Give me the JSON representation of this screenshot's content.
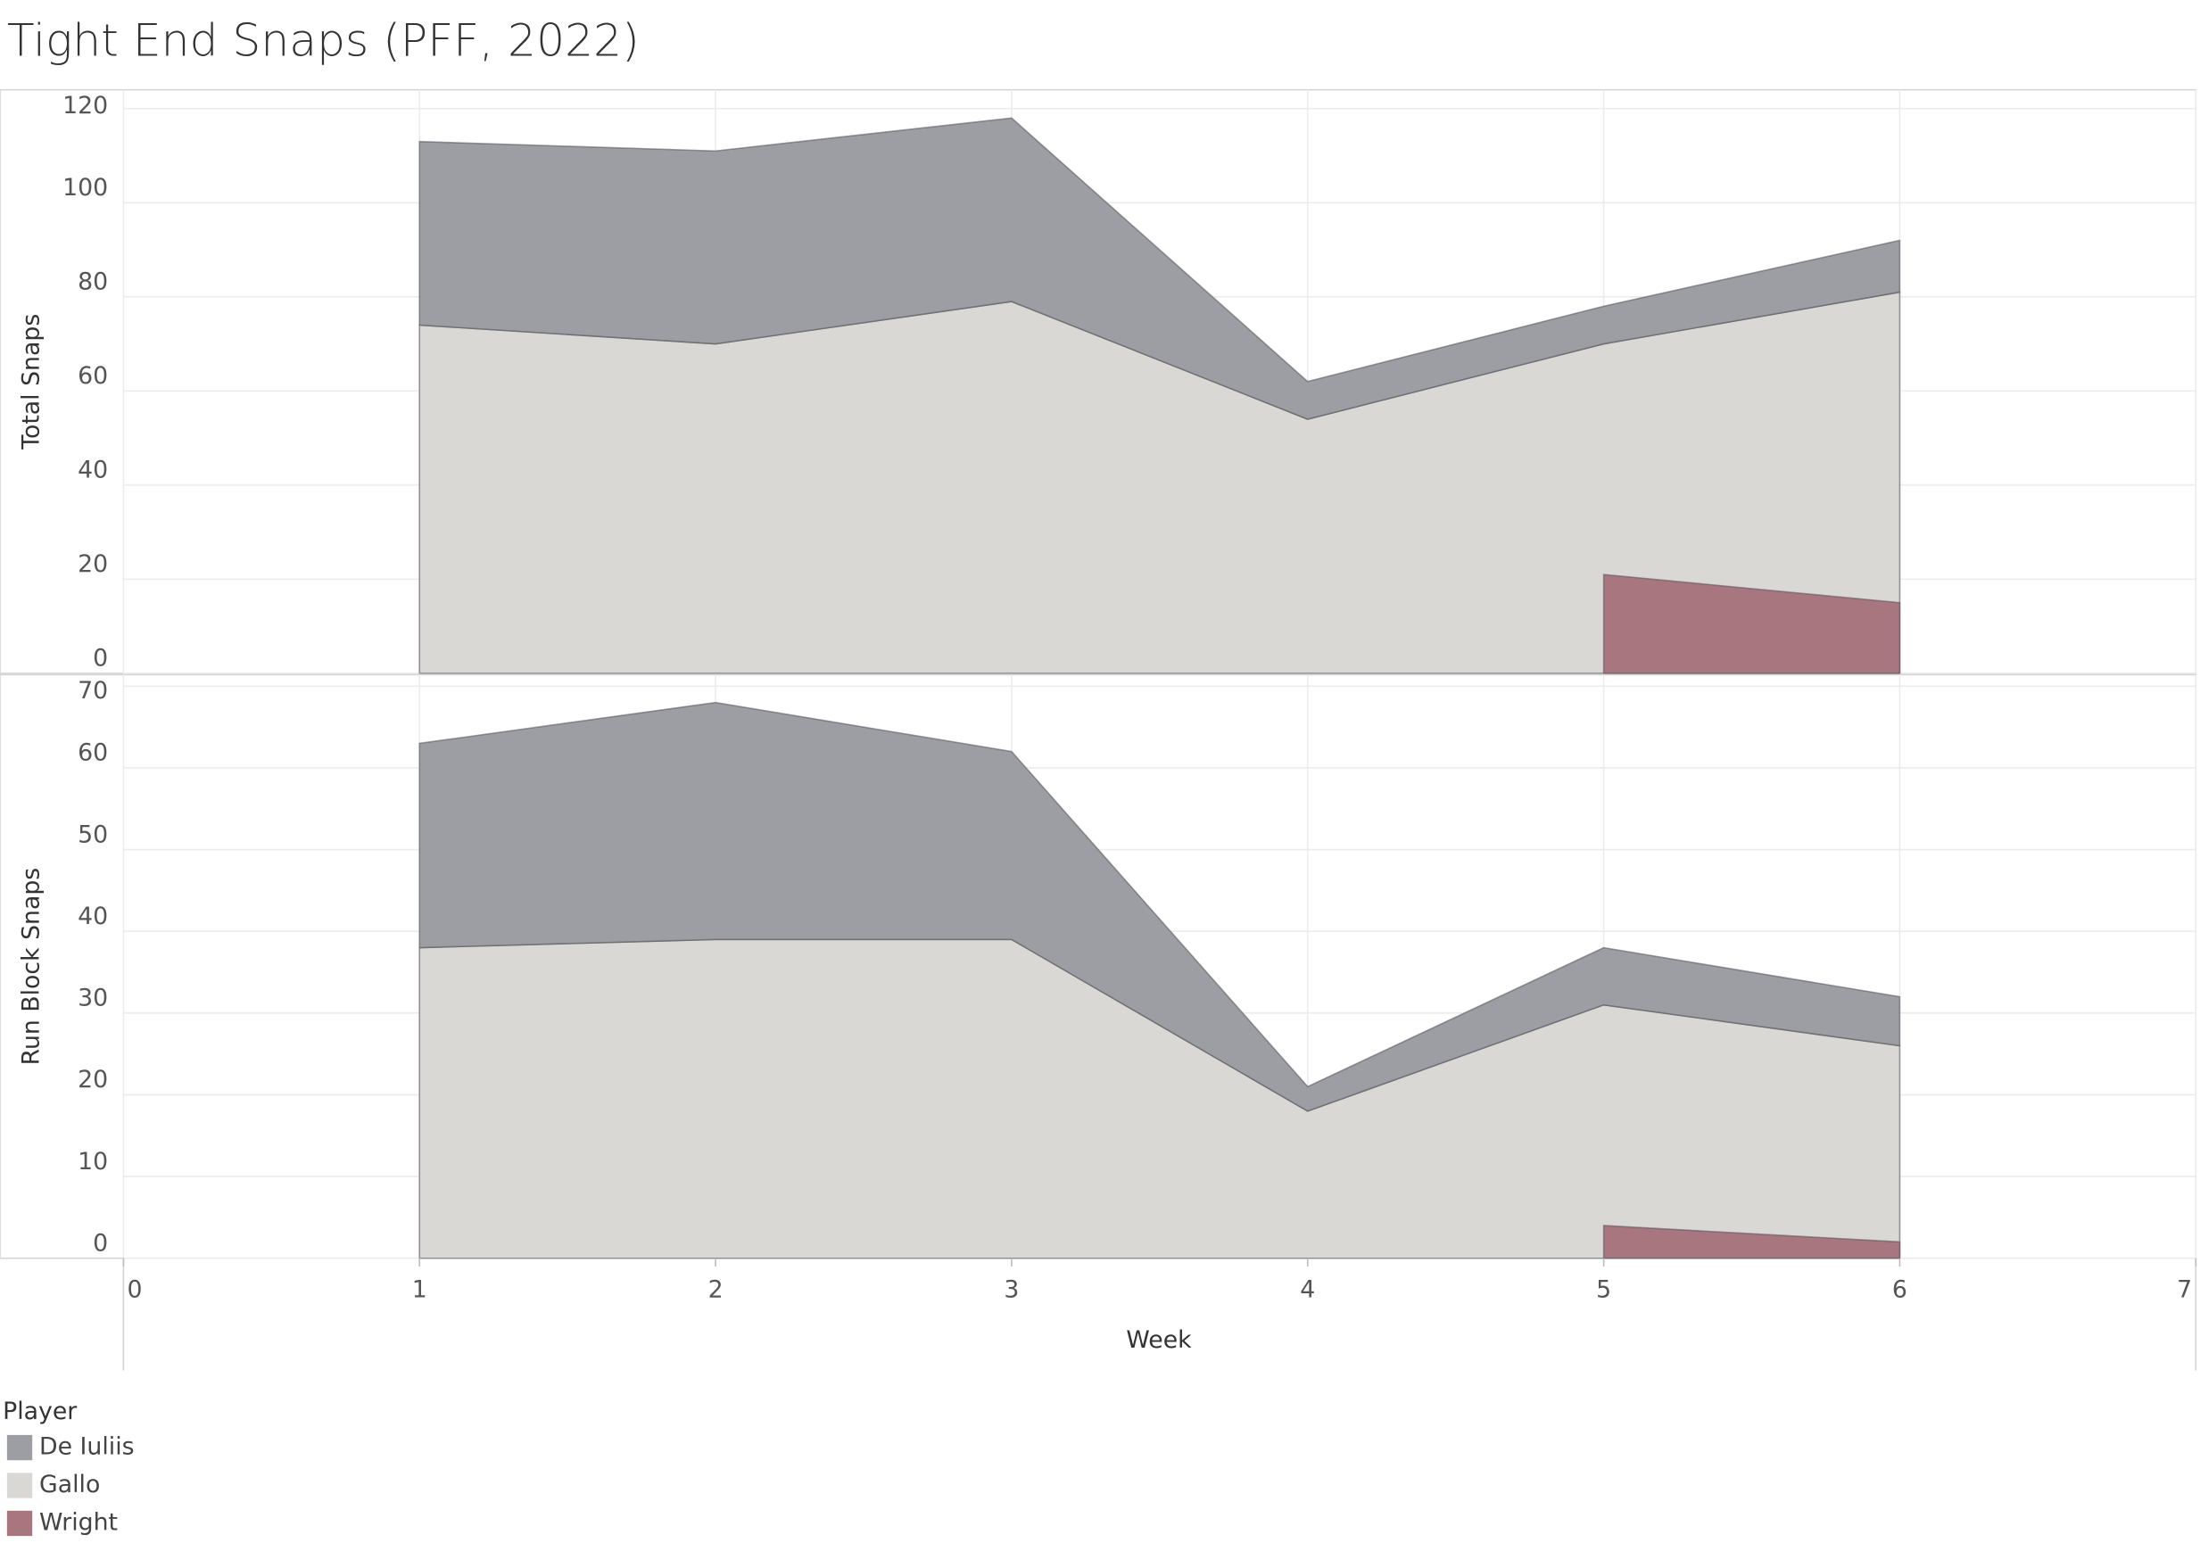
{
  "title": "Tight End Snaps (PFF, 2022)",
  "legend": {
    "title": "Player"
  },
  "chart_data": [
    {
      "type": "area",
      "y_label": "Total Snaps",
      "stacked": true,
      "x": [
        1,
        2,
        3,
        4,
        5,
        6
      ],
      "xlim": [
        0,
        7
      ],
      "xticks": [
        0,
        1,
        2,
        3,
        4,
        5,
        6,
        7
      ],
      "ylim": [
        0,
        124
      ],
      "yticks": [
        0,
        20,
        40,
        60,
        80,
        100,
        120
      ],
      "grid": true,
      "series": [
        {
          "name": "De Iuliis",
          "color": "#9d9ea3",
          "values": [
            39,
            41,
            39,
            8,
            8,
            11
          ]
        },
        {
          "name": "Gallo",
          "color": "#d9d8d4",
          "values": [
            74,
            70,
            79,
            54,
            70,
            81
          ]
        },
        {
          "name": "Wright",
          "color": "#a8767e",
          "values": [
            null,
            null,
            null,
            null,
            21,
            15
          ]
        }
      ]
    },
    {
      "type": "area",
      "y_label": "Run Block Snaps",
      "x_label": "Week",
      "stacked": true,
      "x": [
        1,
        2,
        3,
        4,
        5,
        6
      ],
      "xlim": [
        0,
        7
      ],
      "xticks": [
        0,
        1,
        2,
        3,
        4,
        5,
        6,
        7
      ],
      "ylim": [
        0,
        71.4
      ],
      "yticks": [
        0,
        10,
        20,
        30,
        40,
        50,
        60,
        70
      ],
      "grid": true,
      "series": [
        {
          "name": "De Iuliis",
          "color": "#9d9ea3",
          "values": [
            25,
            29,
            23,
            3,
            7,
            6
          ]
        },
        {
          "name": "Gallo",
          "color": "#d9d8d4",
          "values": [
            38,
            39,
            39,
            18,
            31,
            26
          ]
        },
        {
          "name": "Wright",
          "color": "#a8767e",
          "values": [
            null,
            null,
            null,
            null,
            4,
            2
          ]
        }
      ]
    }
  ]
}
